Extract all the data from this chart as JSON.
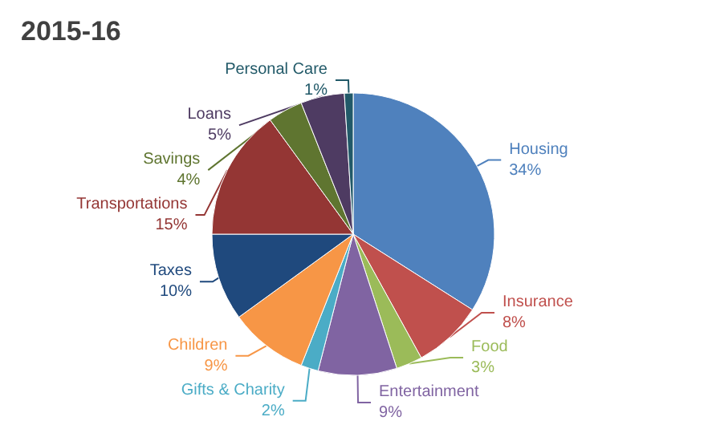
{
  "chart_data": {
    "type": "pie",
    "title": "2015-16",
    "categories": [
      "Housing",
      "Insurance",
      "Food",
      "Entertainment",
      "Gifts & Charity",
      "Children",
      "Taxes",
      "Transportations",
      "Savings",
      "Loans",
      "Personal Care"
    ],
    "values": [
      34,
      8,
      3,
      9,
      2,
      9,
      10,
      15,
      4,
      5,
      1
    ],
    "value_labels": [
      "34%",
      "8%",
      "3%",
      "9%",
      "2%",
      "9%",
      "10%",
      "15%",
      "4%",
      "5%",
      "1%"
    ],
    "colors": [
      "#4f81bd",
      "#c0504d",
      "#9bbb59",
      "#8064a2",
      "#4bacc6",
      "#f79646",
      "#1f497d",
      "#943634",
      "#5f7530",
      "#4e3b62",
      "#215968"
    ],
    "legend": false
  }
}
